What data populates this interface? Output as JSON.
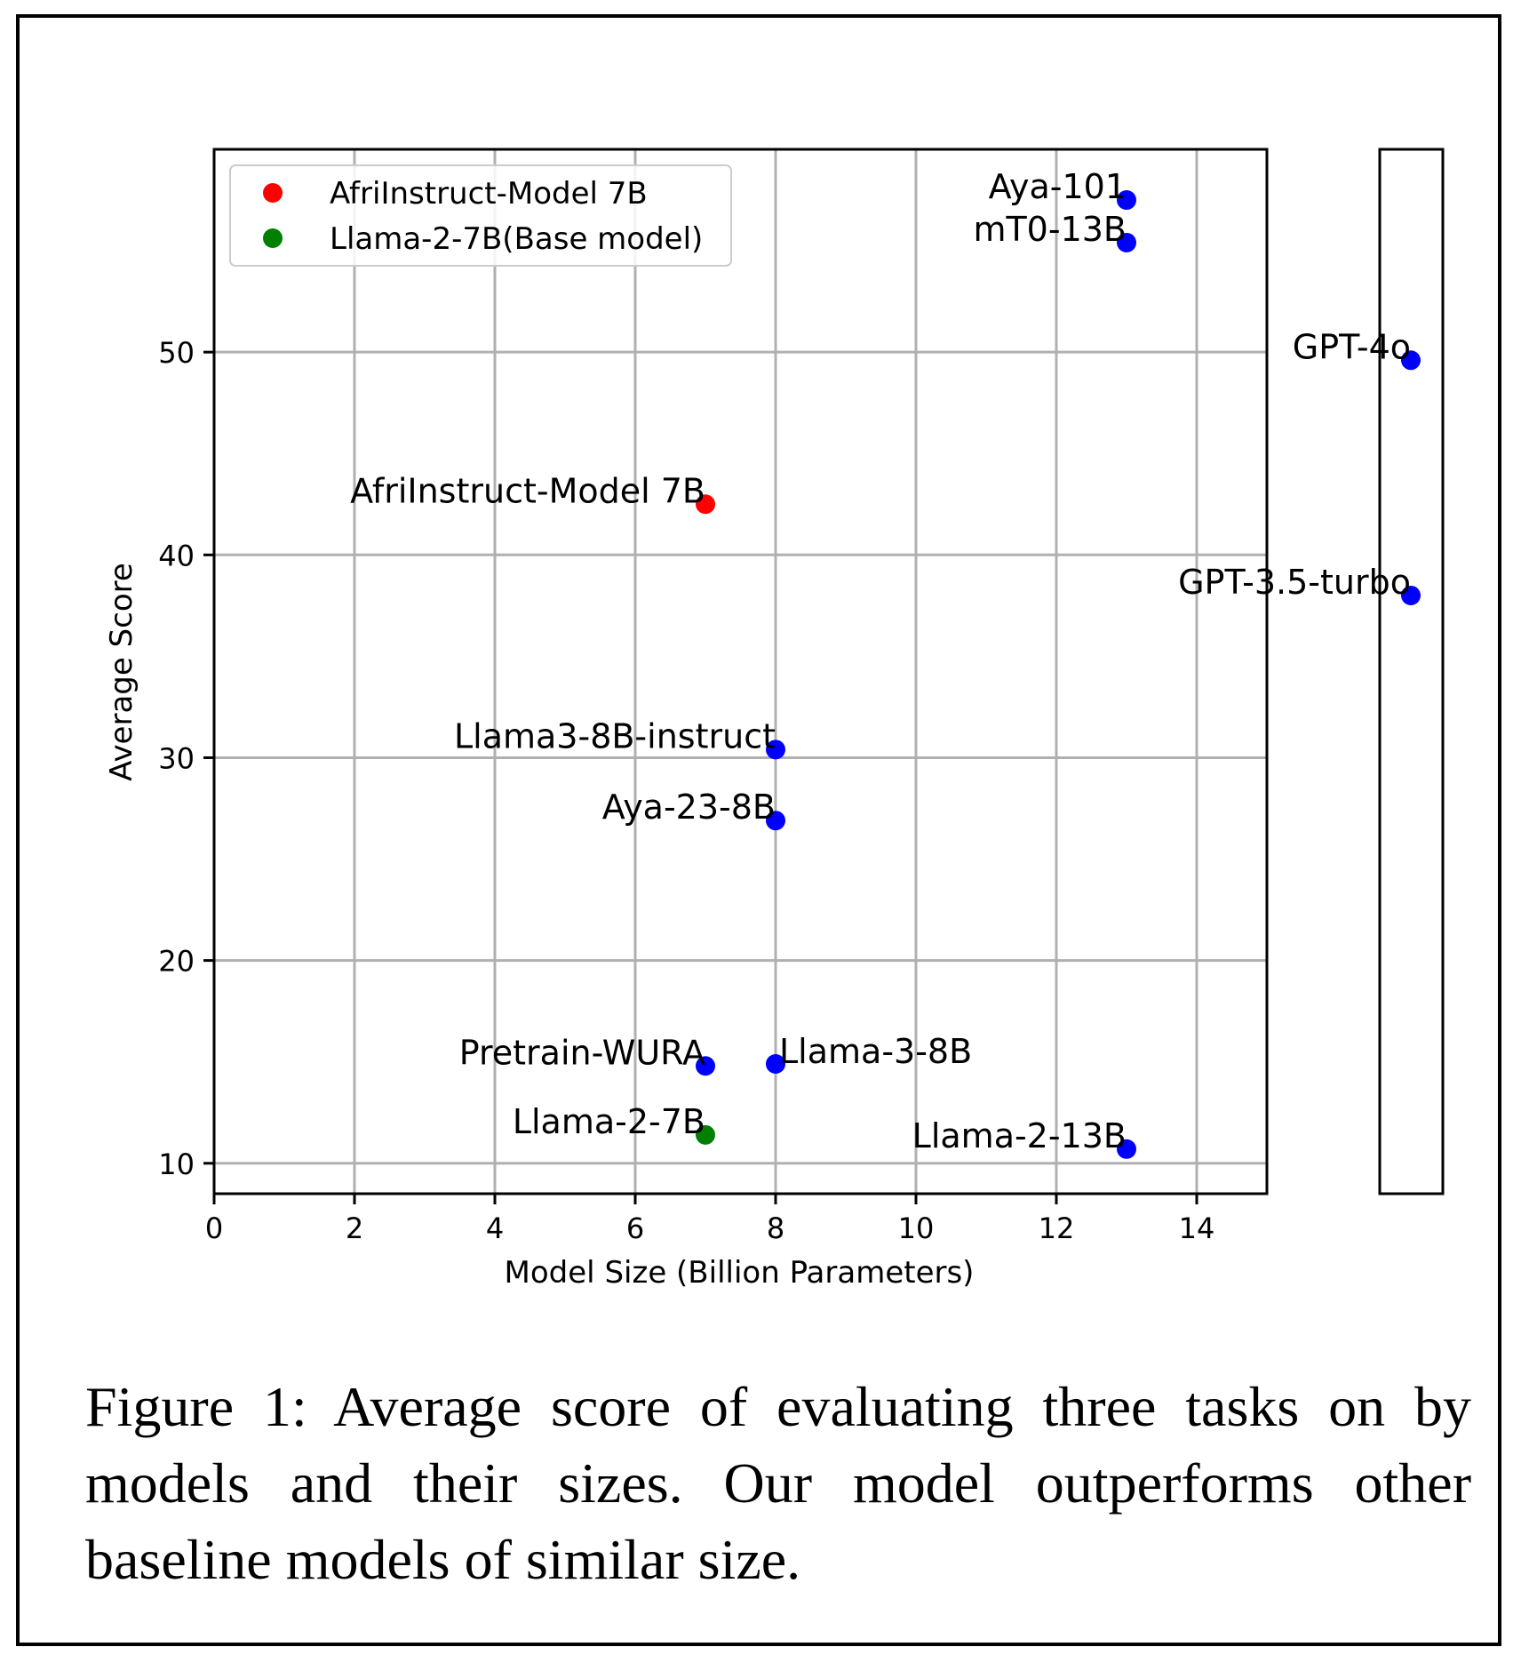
{
  "chart_data": {
    "type": "scatter",
    "xlabel": "Model Size (Billion Parameters)",
    "ylabel": "Average Score",
    "xlim": [
      0,
      15
    ],
    "ylim": [
      8.5,
      60
    ],
    "xticks": [
      0,
      2,
      4,
      6,
      8,
      10,
      12,
      14
    ],
    "yticks": [
      10,
      20,
      30,
      40,
      50
    ],
    "grid": true,
    "legend_position": "top-left",
    "legend": [
      {
        "label": "AfriInstruct-Model 7B",
        "color": "#ff0000"
      },
      {
        "label": "Llama-2-7B(Base model)",
        "color": "#008000"
      }
    ],
    "points": [
      {
        "label": "AfriInstruct-Model 7B",
        "x": 7,
        "y": 42.5,
        "color": "#ff0000"
      },
      {
        "label": "Llama-2-7B",
        "x": 7,
        "y": 11.4,
        "color": "#008000"
      },
      {
        "label": "Pretrain-WURA",
        "x": 7,
        "y": 14.8,
        "color": "#0000ff"
      },
      {
        "label": "Llama3-8B-instruct",
        "x": 8,
        "y": 30.4,
        "color": "#0000ff"
      },
      {
        "label": "Aya-23-8B",
        "x": 8,
        "y": 26.9,
        "color": "#0000ff"
      },
      {
        "label": "Llama-3-8B",
        "x": 8,
        "y": 14.9,
        "color": "#0000ff"
      },
      {
        "label": "Aya-101",
        "x": 13,
        "y": 57.5,
        "color": "#0000ff"
      },
      {
        "label": "mT0-13B",
        "x": 13,
        "y": 55.4,
        "color": "#0000ff"
      },
      {
        "label": "Llama-2-13B",
        "x": 13,
        "y": 10.7,
        "color": "#0000ff"
      }
    ],
    "side_panel_points": [
      {
        "label": "GPT-4o",
        "y": 49.6,
        "color": "#0000ff"
      },
      {
        "label": "GPT-3.5-turbo",
        "y": 38.0,
        "color": "#0000ff"
      }
    ]
  },
  "caption": "Figure 1: Average score of evaluating three tasks on by models and their sizes. Our model outperforms other baseline models of similar size."
}
